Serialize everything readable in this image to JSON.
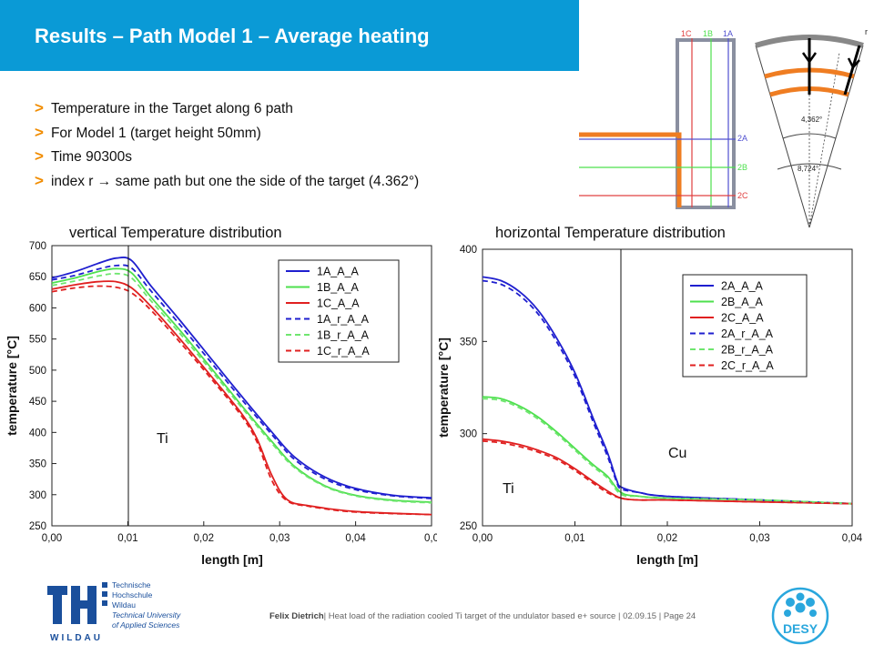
{
  "slide": {
    "title": "Results – Path Model 1 – Average heating",
    "bullets": [
      "Temperature in the Target along 6 path",
      "For Model 1 (target height 50mm)",
      "Time 90300s",
      "index r  → same path but one the side of the target (4.362°)"
    ],
    "bullet_marker": ">",
    "accent_color": "#0a9ad6",
    "bullet_color": "#f18c00"
  },
  "schematic": {
    "top_labels": [
      "1C",
      "1B",
      "1A"
    ],
    "side_labels": [
      "2A",
      "2B",
      "2C"
    ],
    "angle_labels": [
      "4,362°",
      "8,724°"
    ],
    "corner_label": "r"
  },
  "chart_data": [
    {
      "type": "line",
      "title": "vertical Temperature distribution",
      "xlabel": "length [m]",
      "ylabel": "temperature [°C]",
      "xlim": [
        0,
        0.05
      ],
      "ylim": [
        250,
        700
      ],
      "xticks": [
        "0,00",
        "0,01",
        "0,02",
        "0,03",
        "0,04",
        "0,0"
      ],
      "yticks": [
        "250",
        "300",
        "350",
        "400",
        "450",
        "500",
        "550",
        "600",
        "650",
        "700"
      ],
      "legend_position": "top-right",
      "annotations": [
        {
          "text": "Ti"
        }
      ],
      "series": [
        {
          "name": "1A_A_A",
          "color": "#1f1fcf",
          "dash": "solid",
          "x": [
            0,
            0.003,
            0.006,
            0.0085,
            0.0105,
            0.013,
            0.017,
            0.021,
            0.025,
            0.029,
            0.032,
            0.036,
            0.04,
            0.045,
            0.05
          ],
          "y": [
            648,
            658,
            671,
            680,
            676,
            636,
            578,
            518,
            458,
            400,
            360,
            328,
            310,
            299,
            295
          ]
        },
        {
          "name": "1B_A_A",
          "color": "#4ee04e",
          "dash": "solid",
          "x": [
            0,
            0.003,
            0.006,
            0.0085,
            0.0105,
            0.013,
            0.017,
            0.021,
            0.025,
            0.029,
            0.032,
            0.036,
            0.04,
            0.045,
            0.05
          ],
          "y": [
            640,
            648,
            658,
            663,
            656,
            618,
            562,
            503,
            443,
            385,
            345,
            314,
            299,
            291,
            288
          ]
        },
        {
          "name": "1C_A_A",
          "color": "#e02020",
          "dash": "solid",
          "x": [
            0,
            0.003,
            0.006,
            0.0085,
            0.0105,
            0.013,
            0.017,
            0.021,
            0.025,
            0.027,
            0.029,
            0.031,
            0.034,
            0.04,
            0.05
          ],
          "y": [
            630,
            637,
            642,
            642,
            632,
            603,
            548,
            490,
            430,
            390,
            330,
            292,
            282,
            273,
            268
          ]
        },
        {
          "name": "1A_r_A_A",
          "color": "#1f1fcf",
          "dash": "dashed",
          "x": [
            0,
            0.003,
            0.006,
            0.0085,
            0.0105,
            0.013,
            0.017,
            0.021,
            0.025,
            0.029,
            0.032,
            0.036,
            0.04,
            0.045,
            0.05
          ],
          "y": [
            645,
            652,
            662,
            668,
            664,
            628,
            571,
            512,
            453,
            396,
            356,
            325,
            308,
            298,
            294
          ]
        },
        {
          "name": "1B_r_A_A",
          "color": "#6fe66f",
          "dash": "dashed",
          "x": [
            0,
            0.003,
            0.006,
            0.0085,
            0.0105,
            0.013,
            0.017,
            0.021,
            0.025,
            0.029,
            0.032,
            0.036,
            0.04,
            0.045,
            0.05
          ],
          "y": [
            636,
            643,
            651,
            655,
            648,
            612,
            557,
            499,
            440,
            382,
            343,
            313,
            298,
            290,
            287
          ]
        },
        {
          "name": "1C_r_A_A",
          "color": "#e02020",
          "dash": "dashed",
          "x": [
            0,
            0.003,
            0.006,
            0.0085,
            0.0105,
            0.013,
            0.017,
            0.021,
            0.025,
            0.027,
            0.029,
            0.031,
            0.034,
            0.04,
            0.05
          ],
          "y": [
            626,
            632,
            635,
            633,
            624,
            597,
            543,
            486,
            426,
            385,
            322,
            290,
            281,
            272,
            268
          ]
        }
      ]
    },
    {
      "type": "line",
      "title": "horizontal Temperature distribution",
      "xlabel": "length [m]",
      "ylabel": "temperature [°C]",
      "xlim": [
        0,
        0.04
      ],
      "ylim": [
        250,
        400
      ],
      "xticks": [
        "0,00",
        "0,01",
        "0,02",
        "0,03",
        "0,04"
      ],
      "yticks": [
        "250",
        "300",
        "350",
        "400"
      ],
      "legend_position": "top-right",
      "annotations": [
        {
          "text": "Ti"
        },
        {
          "text": "Cu"
        }
      ],
      "series": [
        {
          "name": "2A_A_A",
          "color": "#1f1fcf",
          "dash": "solid",
          "x": [
            0,
            0.002,
            0.004,
            0.006,
            0.008,
            0.01,
            0.012,
            0.0135,
            0.0145,
            0.015,
            0.017,
            0.02,
            0.03,
            0.04
          ],
          "y": [
            385,
            383,
            377,
            367,
            352,
            333,
            308,
            290,
            275,
            271,
            268,
            266,
            264,
            262
          ]
        },
        {
          "name": "2B_A_A",
          "color": "#4ee04e",
          "dash": "solid",
          "x": [
            0,
            0.002,
            0.004,
            0.006,
            0.008,
            0.01,
            0.012,
            0.0135,
            0.015,
            0.017,
            0.02,
            0.03,
            0.04
          ],
          "y": [
            320,
            319,
            315,
            309,
            301,
            292,
            283,
            277,
            268,
            266,
            265,
            264,
            262
          ]
        },
        {
          "name": "2C_A_A",
          "color": "#e02020",
          "dash": "solid",
          "x": [
            0,
            0.002,
            0.004,
            0.006,
            0.008,
            0.01,
            0.012,
            0.0135,
            0.015,
            0.017,
            0.02,
            0.03,
            0.04
          ],
          "y": [
            297,
            296,
            294,
            291,
            287,
            281,
            274,
            269,
            265,
            264,
            264,
            263,
            262
          ]
        },
        {
          "name": "2A_r_A_A",
          "color": "#1f1fcf",
          "dash": "dashed",
          "x": [
            0,
            0.002,
            0.004,
            0.006,
            0.008,
            0.01,
            0.012,
            0.0135,
            0.0145,
            0.015,
            0.017,
            0.02,
            0.03,
            0.04
          ],
          "y": [
            383,
            381,
            375,
            365,
            350,
            331,
            306,
            288,
            274,
            270,
            268,
            266,
            264,
            262
          ]
        },
        {
          "name": "2B_r_A_A",
          "color": "#6fe66f",
          "dash": "dashed",
          "x": [
            0,
            0.002,
            0.004,
            0.006,
            0.008,
            0.01,
            0.012,
            0.0135,
            0.015,
            0.017,
            0.02,
            0.03,
            0.04
          ],
          "y": [
            319,
            318,
            314,
            308,
            300,
            291,
            282,
            276,
            267,
            266,
            265,
            264,
            262
          ]
        },
        {
          "name": "2C_r_A_A",
          "color": "#e02020",
          "dash": "dashed",
          "x": [
            0,
            0.002,
            0.004,
            0.006,
            0.008,
            0.01,
            0.012,
            0.0135,
            0.015,
            0.017,
            0.02,
            0.03,
            0.04
          ],
          "y": [
            296,
            295,
            293,
            290,
            286,
            280,
            273,
            268,
            265,
            264,
            264,
            263,
            262
          ]
        }
      ]
    }
  ],
  "logos": {
    "th_letters": "TH",
    "th_wordmark": "WILDAU",
    "th_lines": [
      "Technische",
      "Hochschule",
      "Wildau",
      "Technical University",
      "of Applied Sciences"
    ],
    "desy": "DESY"
  },
  "footer": {
    "author": "Felix Dietrich",
    "text": "| Heat load of the radiation cooled Ti target of the undulator based e+ source",
    "date": "| 02.09.15",
    "page": "| Page 24"
  }
}
